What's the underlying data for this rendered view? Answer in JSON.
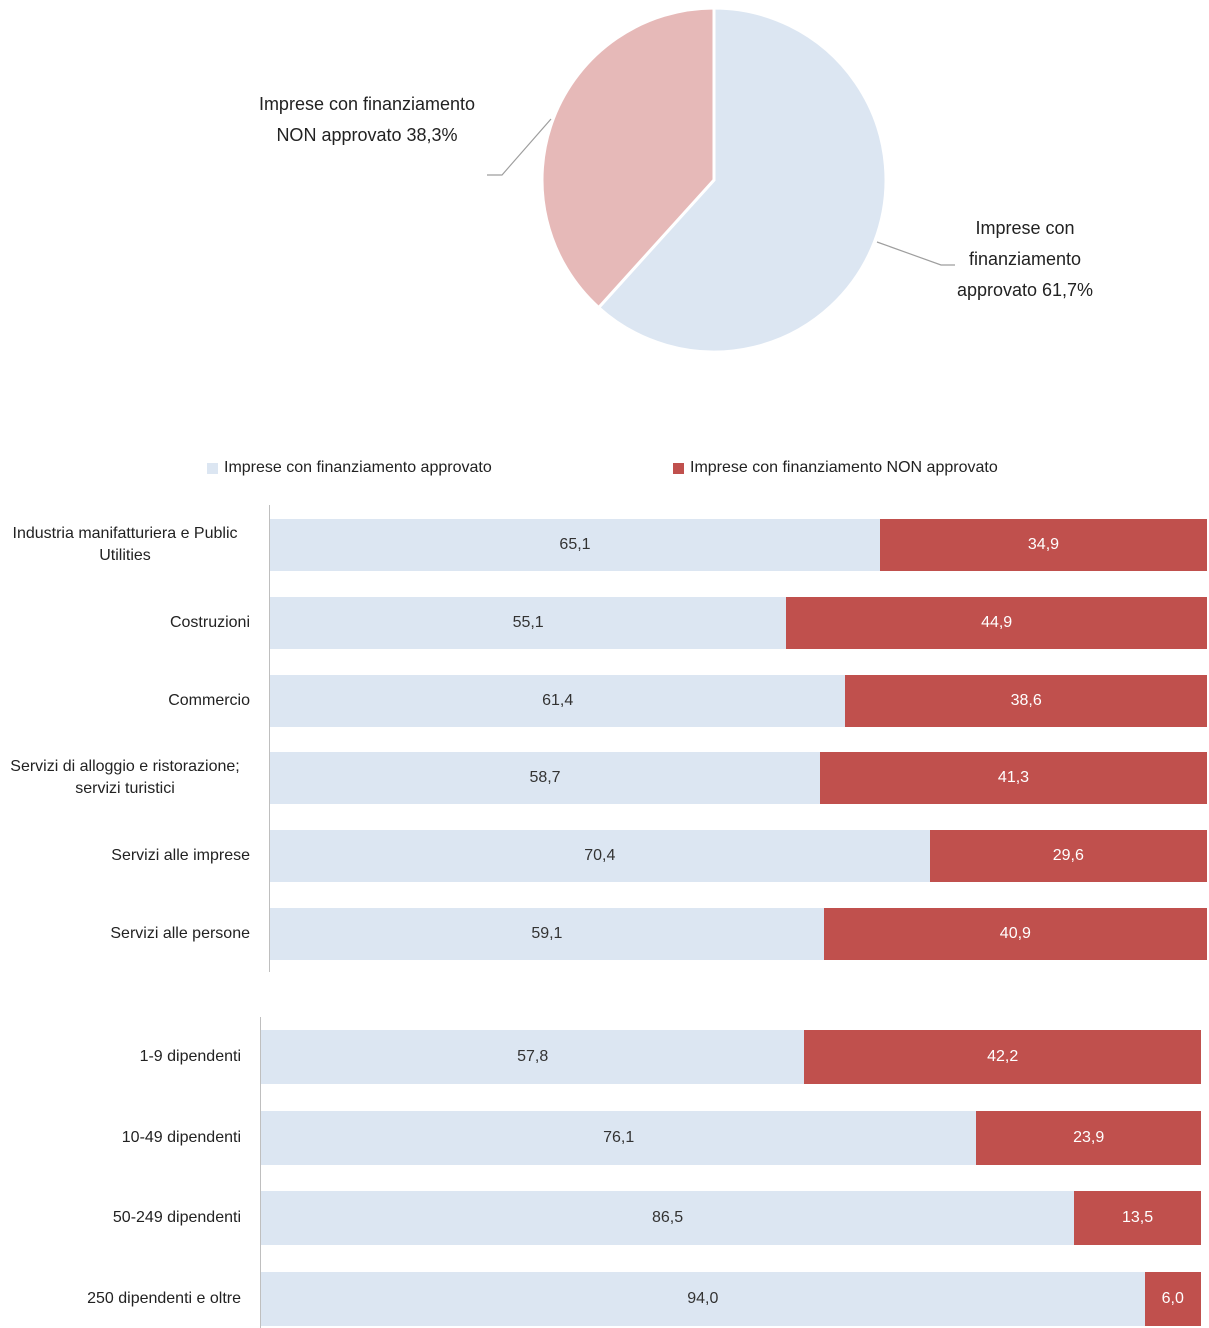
{
  "colors": {
    "approved": "#dce6f2",
    "non_approved": "#c0504d",
    "pie_non_approved": "#e6b9b8"
  },
  "pie": {
    "label_non_line1": "Imprese con finanziamento",
    "label_non_line2": "NON approvato 38,3%",
    "label_app_line1": "Imprese con",
    "label_app_line2": "finanziamento",
    "label_app_line3": "approvato 61,7%"
  },
  "legend": {
    "approved": "Imprese con finanziamento approvato",
    "non_approved": "Imprese con finanziamento NON approvato"
  },
  "chart_data": [
    {
      "type": "pie",
      "slices": [
        {
          "label": "Imprese con finanziamento approvato",
          "value": 61.7,
          "display": "61,7%"
        },
        {
          "label": "Imprese con finanziamento NON approvato",
          "value": 38.3,
          "display": "38,3%"
        }
      ]
    },
    {
      "type": "bar",
      "orientation": "horizontal",
      "stacked": "percent",
      "categories": [
        "Industria manifatturiera e Public Utilities",
        "Costruzioni",
        "Commercio",
        "Servizi di alloggio e ristorazione; servizi turistici",
        "Servizi alle imprese",
        "Servizi alle persone"
      ],
      "series": [
        {
          "name": "Imprese con finanziamento approvato",
          "values": [
            65.1,
            55.1,
            61.4,
            58.7,
            70.4,
            59.1
          ],
          "labels": [
            "65,1",
            "55,1",
            "61,4",
            "58,7",
            "70,4",
            "59,1"
          ]
        },
        {
          "name": "Imprese con finanziamento NON approvato",
          "values": [
            34.9,
            44.9,
            38.6,
            41.3,
            29.6,
            40.9
          ],
          "labels": [
            "34,9",
            "44,9",
            "38,6",
            "41,3",
            "29,6",
            "40,9"
          ]
        }
      ]
    },
    {
      "type": "bar",
      "orientation": "horizontal",
      "stacked": "percent",
      "categories": [
        "1-9 dipendenti",
        "10-49 dipendenti",
        "50-249 dipendenti",
        "250 dipendenti e oltre"
      ],
      "series": [
        {
          "name": "Imprese con finanziamento approvato",
          "values": [
            57.8,
            76.1,
            86.5,
            94.0
          ],
          "labels": [
            "57,8",
            "76,1",
            "86,5",
            "94,0"
          ]
        },
        {
          "name": "Imprese con finanziamento NON approvato",
          "values": [
            42.2,
            23.9,
            13.5,
            6.0
          ],
          "labels": [
            "42,2",
            "23,9",
            "13,5",
            "6,0"
          ]
        }
      ]
    }
  ]
}
